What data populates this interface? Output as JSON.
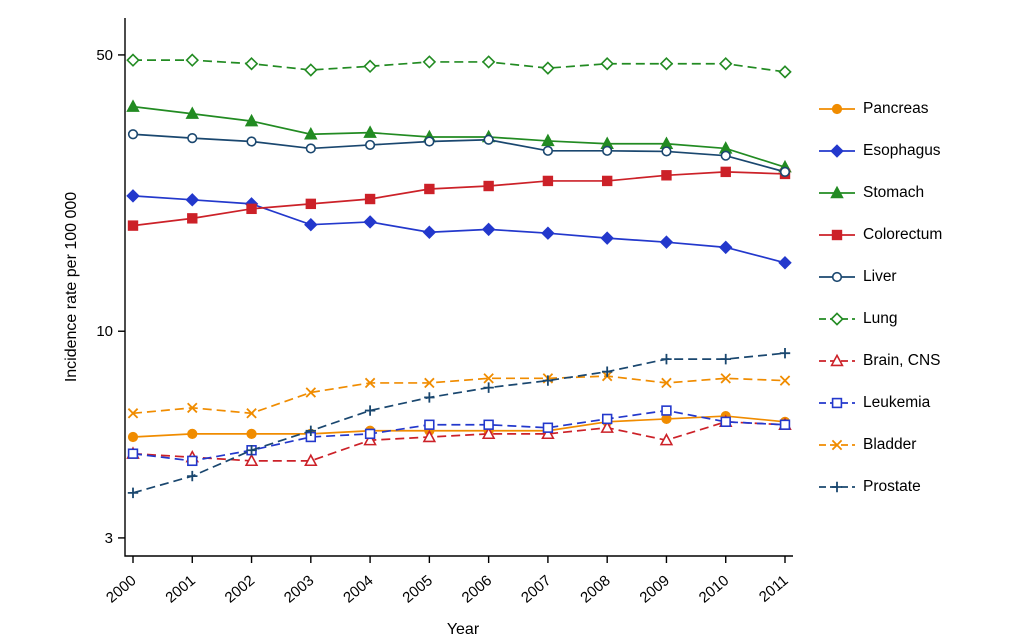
{
  "chart_data": {
    "type": "line",
    "title": "",
    "xlabel": "Year",
    "ylabel": "Incidence rate per 100 000",
    "yscale": "log",
    "ylim": [
      2.7,
      62
    ],
    "yticks": [
      50,
      10,
      3
    ],
    "grid": false,
    "legend_position": "right",
    "x": [
      2000,
      2001,
      2002,
      2003,
      2004,
      2005,
      2006,
      2007,
      2008,
      2009,
      2010,
      2011
    ],
    "series": [
      {
        "name": "Pancreas",
        "color": "#f08c00",
        "marker": "circle",
        "filled": true,
        "dashed": false,
        "values": [
          5.4,
          5.5,
          5.5,
          5.5,
          5.6,
          5.6,
          5.6,
          5.6,
          5.9,
          6.0,
          6.1,
          5.9
        ]
      },
      {
        "name": "Esophagus",
        "color": "#2338cc",
        "marker": "diamond",
        "filled": true,
        "dashed": false,
        "values": [
          22.0,
          21.5,
          21.0,
          18.6,
          18.9,
          17.8,
          18.1,
          17.7,
          17.2,
          16.8,
          16.3,
          14.9
        ]
      },
      {
        "name": "Stomach",
        "color": "#228b22",
        "marker": "triangle",
        "filled": true,
        "dashed": false,
        "values": [
          37.0,
          35.5,
          34.0,
          31.5,
          31.8,
          31.0,
          31.0,
          30.3,
          29.8,
          29.8,
          29.0,
          26.0
        ]
      },
      {
        "name": "Colorectum",
        "color": "#cc2128",
        "marker": "square",
        "filled": true,
        "dashed": false,
        "values": [
          18.5,
          19.3,
          20.4,
          21.0,
          21.6,
          22.9,
          23.3,
          24.0,
          24.0,
          24.8,
          25.3,
          25.0
        ]
      },
      {
        "name": "Liver",
        "color": "#1a476f",
        "marker": "circle",
        "filled": false,
        "dashed": false,
        "values": [
          31.5,
          30.8,
          30.2,
          29.0,
          29.6,
          30.2,
          30.5,
          28.6,
          28.6,
          28.5,
          27.8,
          25.3
        ]
      },
      {
        "name": "Lung",
        "color": "#228b22",
        "marker": "diamond",
        "filled": false,
        "dashed": true,
        "values": [
          48.5,
          48.5,
          47.5,
          45.8,
          46.8,
          48.0,
          48.0,
          46.3,
          47.5,
          47.5,
          47.5,
          45.3
        ]
      },
      {
        "name": "Brain, CNS",
        "color": "#cc2128",
        "marker": "triangle",
        "filled": false,
        "dashed": true,
        "values": [
          4.9,
          4.8,
          4.7,
          4.7,
          5.3,
          5.4,
          5.5,
          5.5,
          5.7,
          5.3,
          5.9,
          5.8
        ]
      },
      {
        "name": "Leukemia",
        "color": "#2338cc",
        "marker": "square",
        "filled": false,
        "dashed": true,
        "values": [
          4.9,
          4.7,
          5.0,
          5.4,
          5.5,
          5.8,
          5.8,
          5.7,
          6.0,
          6.3,
          5.9,
          5.8
        ]
      },
      {
        "name": "Bladder",
        "color": "#f08c00",
        "marker": "x",
        "filled": false,
        "dashed": true,
        "values": [
          6.2,
          6.4,
          6.2,
          7.0,
          7.4,
          7.4,
          7.6,
          7.6,
          7.7,
          7.4,
          7.6,
          7.5
        ]
      },
      {
        "name": "Prostate",
        "color": "#1a476f",
        "marker": "plus",
        "filled": false,
        "dashed": true,
        "values": [
          3.9,
          4.3,
          5.0,
          5.6,
          6.3,
          6.8,
          7.2,
          7.5,
          7.9,
          8.5,
          8.5,
          8.8
        ]
      }
    ]
  }
}
